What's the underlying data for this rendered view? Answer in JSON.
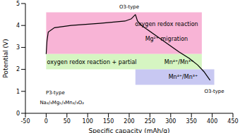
{
  "chart_data": {
    "type": "line",
    "x_label": "Specific capacity (mAh/g)",
    "y_label": "Potential (V)",
    "xlim": [
      -50,
      450
    ],
    "xticks": [
      -50,
      0,
      50,
      100,
      150,
      200,
      250,
      300,
      350,
      400,
      450
    ],
    "ylim": [
      0,
      5
    ],
    "yticks": [
      0,
      1,
      2,
      3,
      4,
      5
    ],
    "grid": false,
    "series": [
      {
        "color": "#000000",
        "x": [
          0,
          2,
          5,
          20,
          60,
          130,
          190,
          205,
          215
        ],
        "values": [
          2.7,
          3.3,
          3.7,
          3.9,
          4.0,
          4.1,
          4.2,
          4.3,
          4.5
        ]
      },
      {
        "color": "#000000",
        "x": [
          215,
          220,
          230,
          260,
          290,
          320,
          345,
          365,
          380,
          395
        ],
        "values": [
          4.5,
          4.2,
          4.0,
          3.6,
          3.2,
          2.8,
          2.5,
          2.2,
          1.9,
          1.5
        ]
      }
    ],
    "regions": [
      {
        "x": [
          0,
          375
        ],
        "y": [
          2.7,
          4.6
        ],
        "color": "#f8b4d6",
        "labels": [
          "oxygen redox reaction",
          "Mg²⁺ migration"
        ]
      },
      {
        "x": [
          0,
          375
        ],
        "y": [
          2.0,
          2.7
        ],
        "color": "#d6f5c2",
        "labels": [
          "oxygen redox reaction + partial",
          "Mn⁴⁺/Mn³⁺"
        ]
      },
      {
        "x": [
          215,
          405
        ],
        "y": [
          1.3,
          2.0
        ],
        "color": "#c8c8f2",
        "labels": [
          "Mn⁴⁺/Mn³⁺"
        ]
      }
    ],
    "annotations": [
      {
        "text": "P3-type"
      },
      {
        "text": "Na₂/₃Mg₁/₃Mn₂/₃O₂"
      },
      {
        "text": "O3-type"
      },
      {
        "text": "O3-type"
      }
    ]
  }
}
